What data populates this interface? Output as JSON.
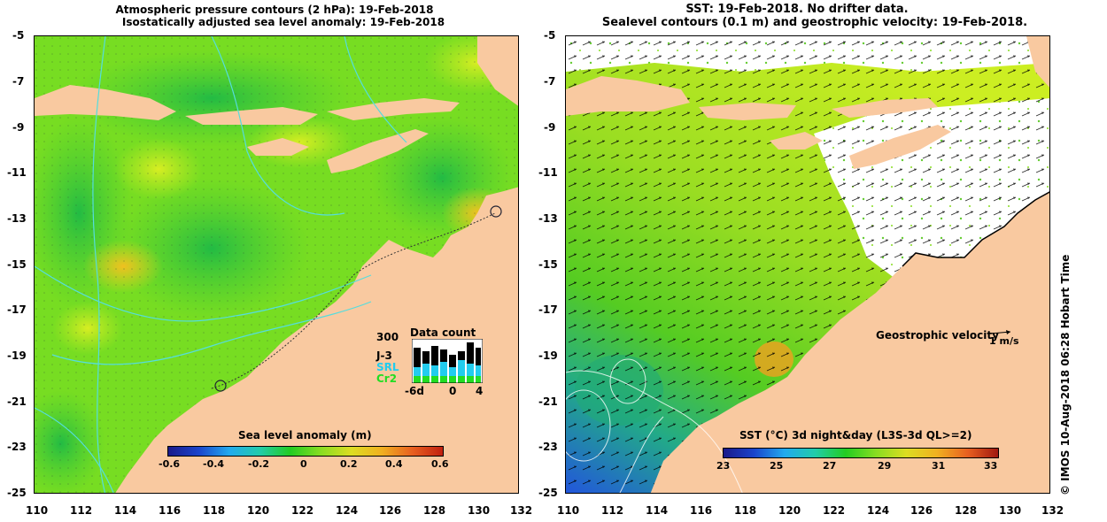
{
  "left_panel": {
    "title_line1": "Atmospheric pressure contours (2 hPa): 19-Feb-2018",
    "title_line2": "Isostatically adjusted sea level anomaly: 19-Feb-2018",
    "colorbar_title": "Sea level anomaly (m)",
    "colorbar_ticks": [
      "-0.6",
      "-0.4",
      "-0.2",
      "0",
      "0.2",
      "0.4",
      "0.6"
    ],
    "inset": {
      "title": "Data count",
      "y_label_top": "300",
      "legend": [
        {
          "label": "J-3",
          "color": "#000000"
        },
        {
          "label": "SRL",
          "color": "#22ccee"
        },
        {
          "label": "Cr2",
          "color": "#22dd22"
        }
      ],
      "x_labels": [
        "-6d",
        "0",
        "4"
      ]
    }
  },
  "right_panel": {
    "title_line1": "SST: 19-Feb-2018. No drifter data.",
    "title_line2": "Sealevel contours (0.1 m) and geostrophic velocity: 19-Feb-2018.",
    "velocity_label": "Geostrophic velocity",
    "velocity_scale": "1 m/s",
    "colorbar_title": "SST (°C) 3d night&day (L3S-3d QL>=2)",
    "colorbar_ticks": [
      "23",
      "25",
      "27",
      "29",
      "31",
      "33"
    ]
  },
  "axes": {
    "x_ticks": [
      "110",
      "112",
      "114",
      "116",
      "118",
      "120",
      "122",
      "124",
      "126",
      "128",
      "130",
      "132"
    ],
    "y_ticks": [
      "-5",
      "-7",
      "-9",
      "-11",
      "-13",
      "-15",
      "-17",
      "-19",
      "-21",
      "-23",
      "-25"
    ]
  },
  "credit": "© IMOS 10-Aug-2018 06:28 Hobart Time",
  "colors": {
    "land": "#f9c9a0",
    "ocean_green": "#66dd22",
    "coast_line": "#55dddd"
  }
}
